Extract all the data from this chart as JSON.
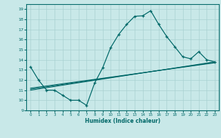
{
  "xlabel": "Humidex (Indice chaleur)",
  "background_color": "#c8e8e8",
  "grid_color": "#a8d0d0",
  "line_color": "#006868",
  "xlim": [
    -0.5,
    23.5
  ],
  "ylim": [
    9,
    19.5
  ],
  "yticks": [
    9,
    10,
    11,
    12,
    13,
    14,
    15,
    16,
    17,
    18,
    19
  ],
  "xticks": [
    0,
    1,
    2,
    3,
    4,
    5,
    6,
    7,
    8,
    9,
    10,
    11,
    12,
    13,
    14,
    15,
    16,
    17,
    18,
    19,
    20,
    21,
    22,
    23
  ],
  "line1_x": [
    0,
    1,
    2,
    3,
    4,
    5,
    6,
    7,
    8,
    9,
    10,
    11,
    12,
    13,
    14,
    15,
    16,
    17,
    18,
    19,
    20,
    21,
    22,
    23
  ],
  "line1_y": [
    13.3,
    12.0,
    11.0,
    11.0,
    10.5,
    10.0,
    10.0,
    9.5,
    11.7,
    13.2,
    15.2,
    16.5,
    17.5,
    18.3,
    18.35,
    18.85,
    17.5,
    16.3,
    15.3,
    14.3,
    14.1,
    14.8,
    14.0,
    13.8
  ],
  "line2_x": [
    0,
    23
  ],
  "line2_y": [
    11.0,
    13.8
  ],
  "line3_x": [
    0,
    23
  ],
  "line3_y": [
    11.1,
    13.75
  ],
  "line4_x": [
    0,
    23
  ],
  "line4_y": [
    11.2,
    13.7
  ]
}
